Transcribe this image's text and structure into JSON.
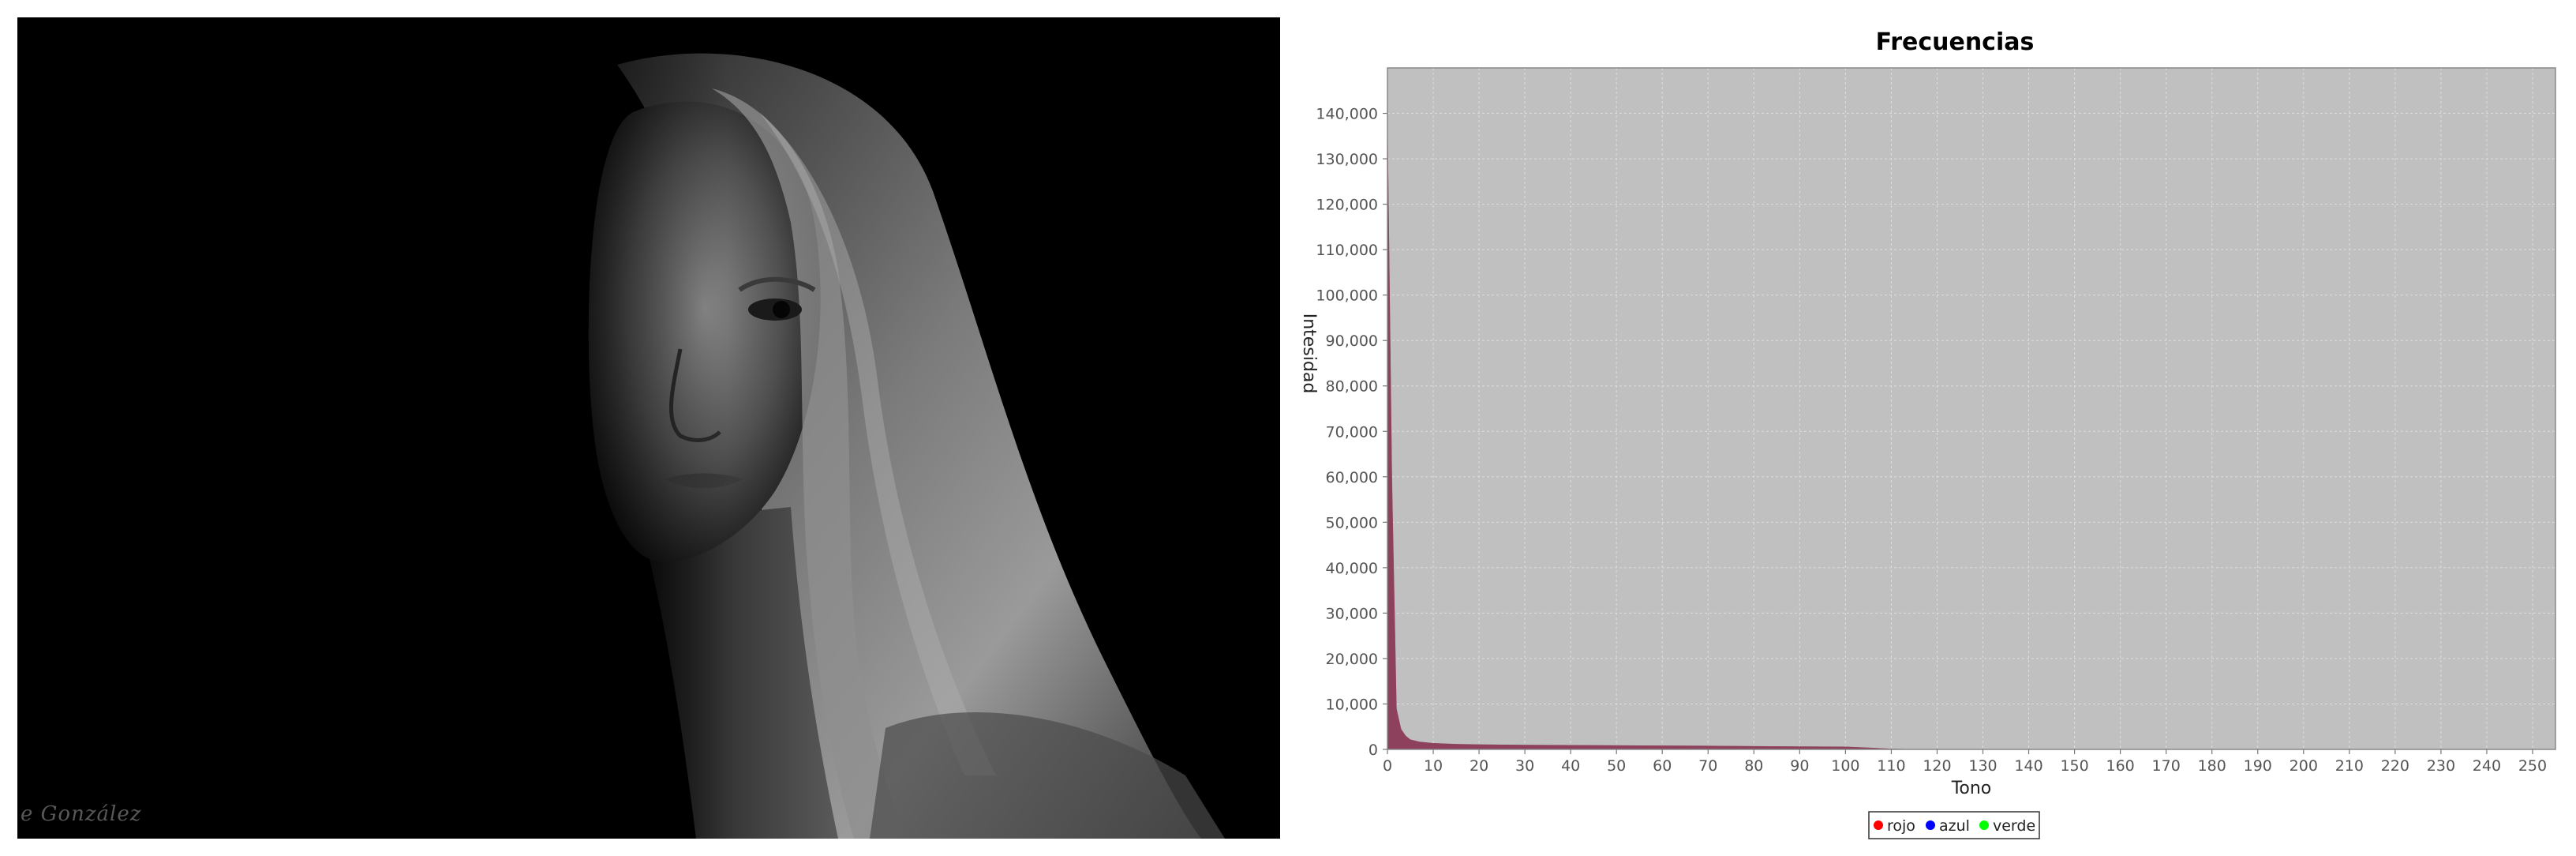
{
  "photo": {
    "watermark": "e González"
  },
  "chart_data": {
    "type": "area",
    "title": "Frecuencias",
    "xlabel": "Tono",
    "ylabel": "Intesidad",
    "xlim": [
      0,
      255
    ],
    "ylim": [
      0,
      150000
    ],
    "x_ticks": [
      0,
      10,
      20,
      30,
      40,
      50,
      60,
      70,
      80,
      90,
      100,
      110,
      120,
      130,
      140,
      150,
      160,
      170,
      180,
      190,
      200,
      210,
      220,
      230,
      240,
      250
    ],
    "y_ticks": [
      0,
      10000,
      20000,
      30000,
      40000,
      50000,
      60000,
      70000,
      80000,
      90000,
      100000,
      110000,
      120000,
      130000,
      140000
    ],
    "grid": true,
    "background_color": "#c0c0c0",
    "legend_position": "bottom",
    "series": [
      {
        "name": "rojo",
        "color": "#ff0000",
        "points": [
          [
            0,
            142000
          ],
          [
            1,
            60000
          ],
          [
            2,
            9000
          ],
          [
            3,
            4500
          ],
          [
            4,
            3000
          ],
          [
            5,
            2200
          ],
          [
            7,
            1700
          ],
          [
            10,
            1400
          ],
          [
            15,
            1200
          ],
          [
            20,
            1100
          ],
          [
            30,
            1000
          ],
          [
            40,
            950
          ],
          [
            50,
            900
          ],
          [
            60,
            850
          ],
          [
            70,
            800
          ],
          [
            80,
            720
          ],
          [
            90,
            650
          ],
          [
            100,
            600
          ],
          [
            105,
            400
          ],
          [
            110,
            150
          ],
          [
            115,
            40
          ],
          [
            120,
            10
          ],
          [
            130,
            0
          ],
          [
            255,
            0
          ]
        ]
      },
      {
        "name": "azul",
        "color": "#0000ff",
        "points": [
          [
            0,
            140000
          ],
          [
            1,
            58000
          ],
          [
            2,
            8500
          ],
          [
            3,
            4300
          ],
          [
            4,
            2900
          ],
          [
            5,
            2100
          ],
          [
            7,
            1650
          ],
          [
            10,
            1350
          ],
          [
            15,
            1150
          ],
          [
            20,
            1050
          ],
          [
            30,
            980
          ],
          [
            40,
            930
          ],
          [
            50,
            880
          ],
          [
            60,
            830
          ],
          [
            70,
            780
          ],
          [
            80,
            700
          ],
          [
            90,
            630
          ],
          [
            100,
            580
          ],
          [
            105,
            380
          ],
          [
            110,
            140
          ],
          [
            115,
            35
          ],
          [
            120,
            8
          ],
          [
            130,
            0
          ],
          [
            255,
            0
          ]
        ]
      },
      {
        "name": "verde",
        "color": "#00ff00",
        "points": [
          [
            0,
            141000
          ],
          [
            1,
            59000
          ],
          [
            2,
            8800
          ],
          [
            3,
            4400
          ],
          [
            4,
            2950
          ],
          [
            5,
            2150
          ],
          [
            7,
            1680
          ],
          [
            10,
            1380
          ],
          [
            15,
            1180
          ],
          [
            20,
            1080
          ],
          [
            30,
            990
          ],
          [
            40,
            940
          ],
          [
            50,
            890
          ],
          [
            60,
            840
          ],
          [
            70,
            790
          ],
          [
            80,
            710
          ],
          [
            90,
            640
          ],
          [
            100,
            590
          ],
          [
            105,
            390
          ],
          [
            110,
            145
          ],
          [
            115,
            38
          ],
          [
            120,
            9
          ],
          [
            130,
            0
          ],
          [
            255,
            0
          ]
        ]
      }
    ],
    "overlap_fill_color": "#8b3a56"
  }
}
